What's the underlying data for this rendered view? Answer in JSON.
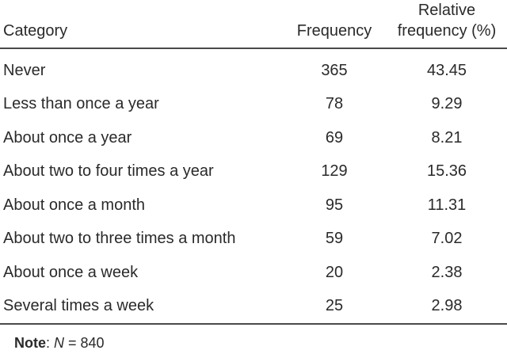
{
  "table": {
    "headers": {
      "category": "Category",
      "frequency": "Frequency",
      "relative_line1": "Relative",
      "relative_line2": "frequency (%)"
    },
    "rows": [
      {
        "category": "Never",
        "frequency": "365",
        "relative": "43.45"
      },
      {
        "category": "Less than once a year",
        "frequency": "78",
        "relative": "9.29"
      },
      {
        "category": "About once a year",
        "frequency": "69",
        "relative": "8.21"
      },
      {
        "category": "About two to four times a year",
        "frequency": "129",
        "relative": "15.36"
      },
      {
        "category": "About once a month",
        "frequency": "95",
        "relative": "11.31"
      },
      {
        "category": "About two to three times a month",
        "frequency": "59",
        "relative": "7.02"
      },
      {
        "category": "About once a week",
        "frequency": "20",
        "relative": "2.38"
      },
      {
        "category": "Several times a week",
        "frequency": "25",
        "relative": "2.98"
      }
    ],
    "note": {
      "label": "Note",
      "colon": ": ",
      "var": "N",
      "rest": " = 840"
    }
  },
  "chart_data": {
    "type": "table",
    "columns": [
      "Category",
      "Frequency",
      "Relative frequency (%)"
    ],
    "rows": [
      [
        "Never",
        365,
        43.45
      ],
      [
        "Less than once a year",
        78,
        9.29
      ],
      [
        "About once a year",
        69,
        8.21
      ],
      [
        "About two to four times a year",
        129,
        15.36
      ],
      [
        "About once a month",
        95,
        11.31
      ],
      [
        "About two to three times a month",
        59,
        7.02
      ],
      [
        "About once a week",
        20,
        2.38
      ],
      [
        "Several times a week",
        25,
        2.98
      ]
    ],
    "note": "N = 840",
    "total_n": 840
  },
  "colors": {
    "background": "#ffffff",
    "text": "#2a2a2a",
    "rule": "#4a4a4a"
  }
}
